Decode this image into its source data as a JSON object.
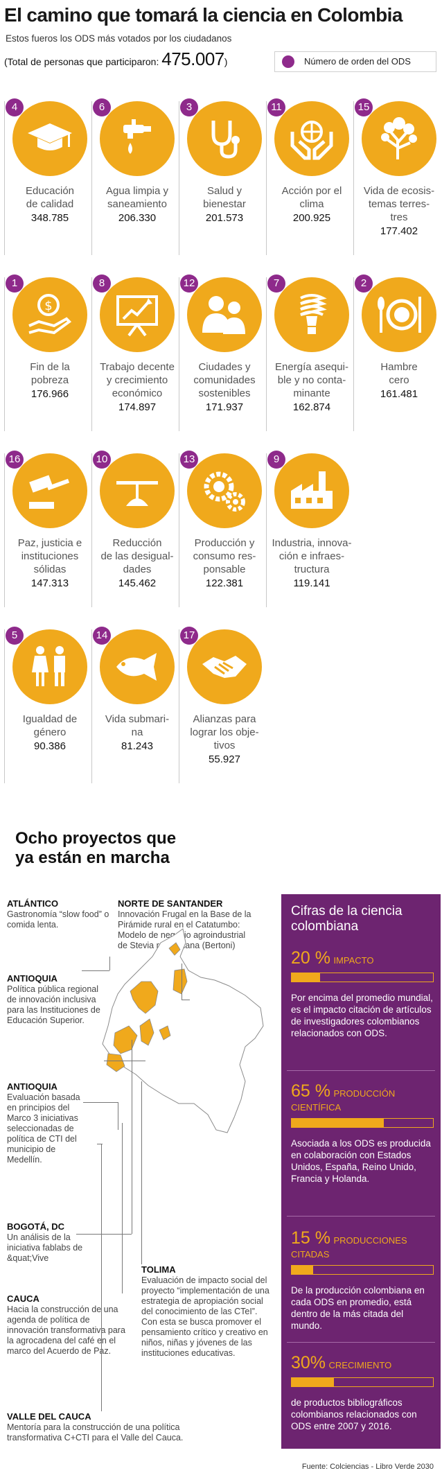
{
  "header": {
    "title": "El camino que tomará la ciencia en Colombia",
    "subtitle": "Estos fueros los ODS más votados por los ciudadanos",
    "total_prefix": "(Total de personas que participaron: ",
    "total_value": "475.007",
    "total_suffix": ")"
  },
  "legend": {
    "label": "Número de orden del ODS",
    "color": "#8e2a8b"
  },
  "colors": {
    "accent": "#f0a91c",
    "badge": "#8e2a8b",
    "panel": "#6d2470"
  },
  "ods": [
    {
      "number": "4",
      "label": "Educación\nde calidad",
      "value": "348.785",
      "icon": "graduation-cap-icon"
    },
    {
      "number": "6",
      "label": "Agua limpia y\nsaneamiento",
      "value": "206.330",
      "icon": "water-tap-icon"
    },
    {
      "number": "3",
      "label": "Salud y\nbienestar",
      "value": "201.573",
      "icon": "stethoscope-icon"
    },
    {
      "number": "11",
      "label": "Acción por el\nclima",
      "value": "200.925",
      "icon": "hands-globe-icon"
    },
    {
      "number": "15",
      "label": "Vida de ecosis-\ntemas terres-\ntres",
      "value": "177.402",
      "icon": "tree-icon"
    },
    {
      "number": "1",
      "label": "Fin de la\npobreza",
      "value": "176.966",
      "icon": "hand-coin-icon"
    },
    {
      "number": "8",
      "label": "Trabajo decente\ny crecimiento\neconómico",
      "value": "174.897",
      "icon": "growth-chart-icon"
    },
    {
      "number": "12",
      "label": "Ciudades y\ncomunidades\nsostenibles",
      "value": "171.937",
      "icon": "people-icon"
    },
    {
      "number": "7",
      "label": "Energía asequi-\nble y no conta-\nminante",
      "value": "162.874",
      "icon": "lightbulb-icon"
    },
    {
      "number": "2",
      "label": "Hambre\ncero",
      "value": "161.481",
      "icon": "plate-cutlery-icon"
    },
    {
      "number": "16",
      "label": "Paz, justicia e\ninstituciones\nsólidas",
      "value": "147.313",
      "icon": "gavel-icon"
    },
    {
      "number": "10",
      "label": "Reducción\nde las desigual-\ndades",
      "value": "145.462",
      "icon": "balance-icon"
    },
    {
      "number": "13",
      "label": "Producción y\nconsumo res-\nponsable",
      "value": "122.381",
      "icon": "gears-icon"
    },
    {
      "number": "9",
      "label": "Industria, innova-\nción e infraes-\ntructura",
      "value": "119.141",
      "icon": "factory-icon"
    },
    {
      "number": "5",
      "label": "Igualdad de\ngénero",
      "value": "90.386",
      "icon": "woman-man-icon"
    },
    {
      "number": "14",
      "label": "Vida submari-\nna",
      "value": "81.243",
      "icon": "fish-icon"
    },
    {
      "number": "17",
      "label": "Alianzas para\nlograr los obje-\ntivos",
      "value": "55.927",
      "icon": "handshake-icon"
    }
  ],
  "projects": {
    "title": "Ocho proyectos que\nya están en marcha",
    "items": [
      {
        "region": "ATLÁNTICO",
        "text": "Gastronomía “slow food” o comida lenta."
      },
      {
        "region": "NORTE DE SANTANDER",
        "text": "Innovación Frugal en la Base de la Pirámide rural en el Catatumbo: Modelo de negocio agroindustrial de Stevia rebaudiana (Bertoni)"
      },
      {
        "region": "ANTIOQUIA",
        "text": "Política pública regional de innovación inclusiva para las Instituciones de Educación Superior."
      },
      {
        "region": "ANTIOQUIA",
        "text": "Evaluación basada en principios del Marco 3 iniciativas seleccionadas de política de CTI del municipio de Medellín."
      },
      {
        "region": "BOGOTÁ, DC",
        "text": "Un análisis de la iniciativa fablabs de &quat;Vive"
      },
      {
        "region": "TOLIMA",
        "text": "Evaluación de impacto social del proyecto “implementación de una estrategia de apropiación social del conocimiento de las CTeI”. Con esta se busca promover el pensamiento crítico y creativo en niños, niñas y jóvenes de las instituciones educativas."
      },
      {
        "region": "CAUCA",
        "text": "Hacia la construcción de una agenda de política de innovación transformativa para la agrocadena del café en el marco del Acuerdo de Paz."
      },
      {
        "region": "VALLE DEL CAUCA",
        "text": "Mentoría para la construcción de una política transformativa C+CTI para el Valle del Cauca."
      }
    ]
  },
  "panel": {
    "title": "Cifras de la ciencia\ncolombiana",
    "stats": [
      {
        "value": "20 %",
        "label": "IMPACTO",
        "fill": 0.2,
        "desc": "Por encima del promedio mundial, es el impacto citación de artículos de investigadores colombianos relacionados con ODS."
      },
      {
        "value": "65 %",
        "label": "PRODUCCIÓN CIENTÍFICA",
        "fill": 0.65,
        "desc": "Asociada a los ODS es producida en colaboración con Estados Unidos, España, Reino Unido, Francia y Holanda."
      },
      {
        "value": "15 %",
        "label": "PRODUCCIONES CITADAS",
        "fill": 0.15,
        "desc": "De la producción colombiana en cada ODS en promedio, está dentro de la más citada del mundo."
      },
      {
        "value": "30%",
        "label": "CRECIMIENTO",
        "fill": 0.3,
        "desc": "de productos bibliográficos colombianos relacionados con ODS entre 2007 y 2016."
      }
    ]
  },
  "source": "Fuente: Colciencias - Libro Verde 2030"
}
